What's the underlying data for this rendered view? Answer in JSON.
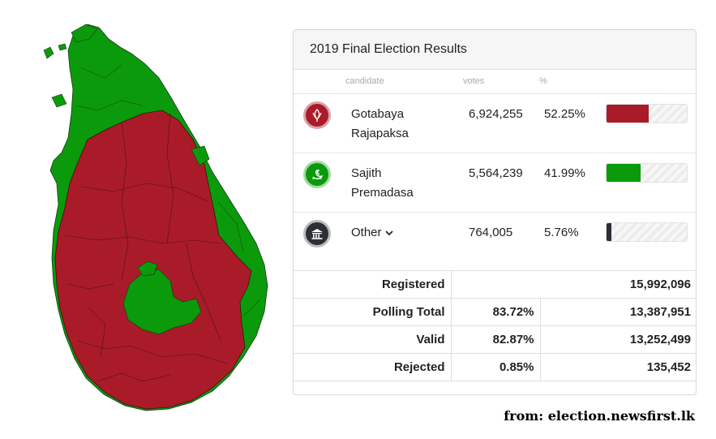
{
  "panel": {
    "title": "2019 Final Election Results"
  },
  "columns": {
    "candidate": "candidate",
    "votes": "votes",
    "percent": "%"
  },
  "candidates": [
    {
      "name_line1": "Gotabaya",
      "name_line2": "Rajapaksa",
      "votes": "6,924,255",
      "percent": "52.25%",
      "share": 52.25,
      "color": "#a91b28",
      "icon": "lotus-bud-icon"
    },
    {
      "name_line1": "Sajith",
      "name_line2": "Premadasa",
      "votes": "5,564,239",
      "percent": "41.99%",
      "share": 41.99,
      "color": "#0b9a0b",
      "icon": "swan-icon"
    },
    {
      "name_line1": "Other",
      "name_line2": "",
      "votes": "764,005",
      "percent": "5.76%",
      "share": 5.76,
      "color": "#2c2f33",
      "icon": "government-building-icon"
    }
  ],
  "stats": [
    {
      "label": "Registered",
      "pct": "",
      "value": "15,992,096"
    },
    {
      "label": "Polling Total",
      "pct": "83.72%",
      "value": "13,387,951"
    },
    {
      "label": "Valid",
      "pct": "82.87%",
      "value": "13,252,499"
    },
    {
      "label": "Rejected",
      "pct": "0.85%",
      "value": "135,452"
    }
  ],
  "source": "from: election.newsfirst.lk",
  "map": {
    "winner_colors": {
      "red": "#a91b28",
      "green": "#0b9a0b"
    }
  }
}
